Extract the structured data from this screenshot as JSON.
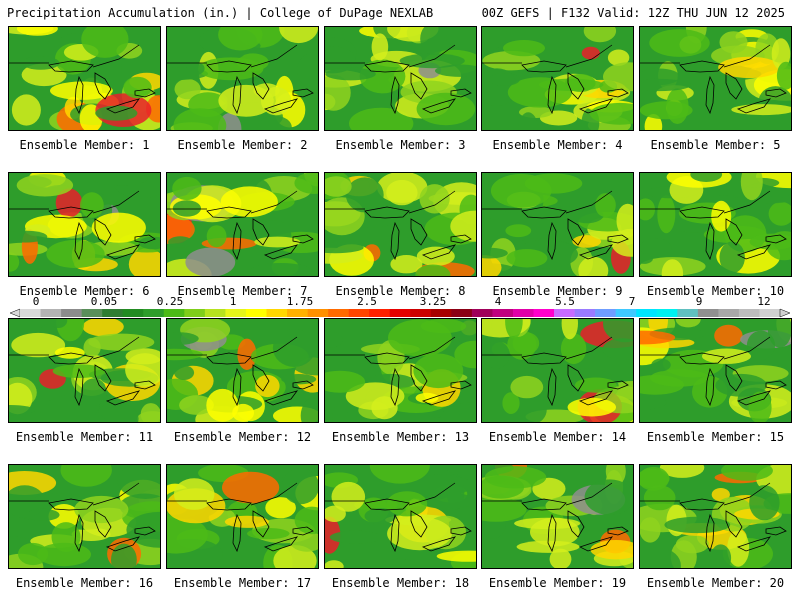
{
  "header": {
    "left": "Precipitation Accumulation (in.) | College of DuPage NEXLAB",
    "right": "00Z GEFS | F132 Valid: 12Z THU JUN 12 2025"
  },
  "members": [
    {
      "label": "Ensemble Member: 1"
    },
    {
      "label": "Ensemble Member: 2"
    },
    {
      "label": "Ensemble Member: 3"
    },
    {
      "label": "Ensemble Member: 4"
    },
    {
      "label": "Ensemble Member: 5"
    },
    {
      "label": "Ensemble Member: 6"
    },
    {
      "label": "Ensemble Member: 7"
    },
    {
      "label": "Ensemble Member: 8"
    },
    {
      "label": "Ensemble Member: 9"
    },
    {
      "label": "Ensemble Member: 10"
    },
    {
      "label": "Ensemble Member: 11"
    },
    {
      "label": "Ensemble Member: 12"
    },
    {
      "label": "Ensemble Member: 13"
    },
    {
      "label": "Ensemble Member: 14"
    },
    {
      "label": "Ensemble Member: 15"
    },
    {
      "label": "Ensemble Member: 16"
    },
    {
      "label": "Ensemble Member: 17"
    },
    {
      "label": "Ensemble Member: 18"
    },
    {
      "label": "Ensemble Member: 19"
    },
    {
      "label": "Ensemble Member: 20"
    }
  ],
  "colorbar": {
    "ticks": [
      "0",
      "0.05",
      "0.25",
      "1",
      "1.75",
      "2.5",
      "3.25",
      "4",
      "5.5",
      "7",
      "9",
      "12"
    ],
    "colors": [
      "#d9d9d9",
      "#b3b3b3",
      "#8c8c8c",
      "#5a8f5a",
      "#2f7d32",
      "#228b22",
      "#2e9d2b",
      "#4cbb17",
      "#7fce1a",
      "#b6e21f",
      "#e6f51a",
      "#ffff00",
      "#ffd700",
      "#ffb000",
      "#ff9000",
      "#ff6a00",
      "#ff4500",
      "#ff2000",
      "#e60000",
      "#cc0000",
      "#a80000",
      "#8b0015",
      "#a0005a",
      "#c0007f",
      "#e000a8",
      "#ff00cc",
      "#c86bff",
      "#9a7bff",
      "#6f9dff",
      "#3fc9ff",
      "#00e5ff",
      "#00f0f0",
      "#60c0c0",
      "#909090",
      "#a8a8a8",
      "#bdbdbd",
      "#d0d0d0"
    ]
  }
}
